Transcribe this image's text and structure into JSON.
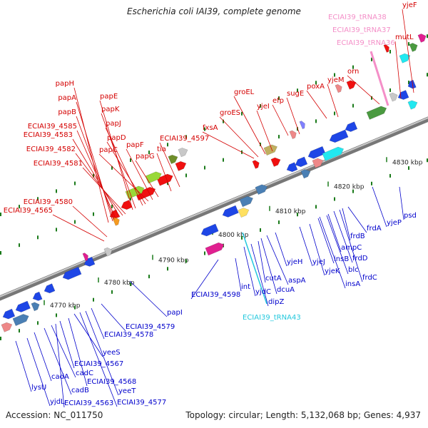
{
  "title": "Escherichia coli IAI39, complete genome",
  "accession": "Accession: NC_011750",
  "summary": "Topology: circular; Length: 5,132,068 bp; Genes: 4,937",
  "colors": {
    "backbone": "#777777",
    "upper_labels": "#d40000",
    "lower_labels": "#0000cc",
    "trna_pink": "#f48fc8",
    "trna_cyan": "#23c8dd",
    "tick": "#1a7a1a"
  },
  "coordinate_labels": [
    "4770 kbp",
    "4780 kbp",
    "4790 kbp",
    "4800 kbp",
    "4810 kbp",
    "4820 kbp",
    "4830 kbp"
  ],
  "upper_labels": [
    "papH",
    "papA",
    "papB",
    "ECIAI39_4585",
    "ECIAI39_4583",
    "ECIAI39_4582",
    "ECIAI39_4581",
    "ECIAI39_4580",
    "ECIAI39_4565",
    "papE",
    "papK",
    "papJ",
    "papD",
    "papC",
    "papF",
    "papG",
    "ECIAI39_4597",
    "tia",
    "fxsA",
    "groES",
    "groEL",
    "yjeI",
    "efp",
    "sugE",
    "poxA",
    "yjeM",
    "orn",
    "mutL",
    "yjeF",
    "ECIAI39_tRNA38",
    "ECIAI39_tRNA37",
    "ECIAI39_tRNA36"
  ],
  "lower_labels": [
    "lysU",
    "yjdL",
    "cadA",
    "cadB",
    "cadC",
    "ECIAI39_4567",
    "ECIAI39_4568",
    "ECIAI39_4563",
    "yeeS",
    "yeeT",
    "ECIAI39_4577",
    "ECIAI39_4578",
    "ECIAI39_4579",
    "papI",
    "ECIAI39_4598",
    "int",
    "ECIAI39_tRNA43",
    "yjdC",
    "dipZ",
    "cutA",
    "dcuA",
    "aspA",
    "yjeH",
    "yjeJ",
    "yjeK",
    "insA",
    "blc",
    "insB",
    "ampC",
    "frdD",
    "frdC",
    "frdB",
    "frdA",
    "yjeP",
    "psd"
  ]
}
